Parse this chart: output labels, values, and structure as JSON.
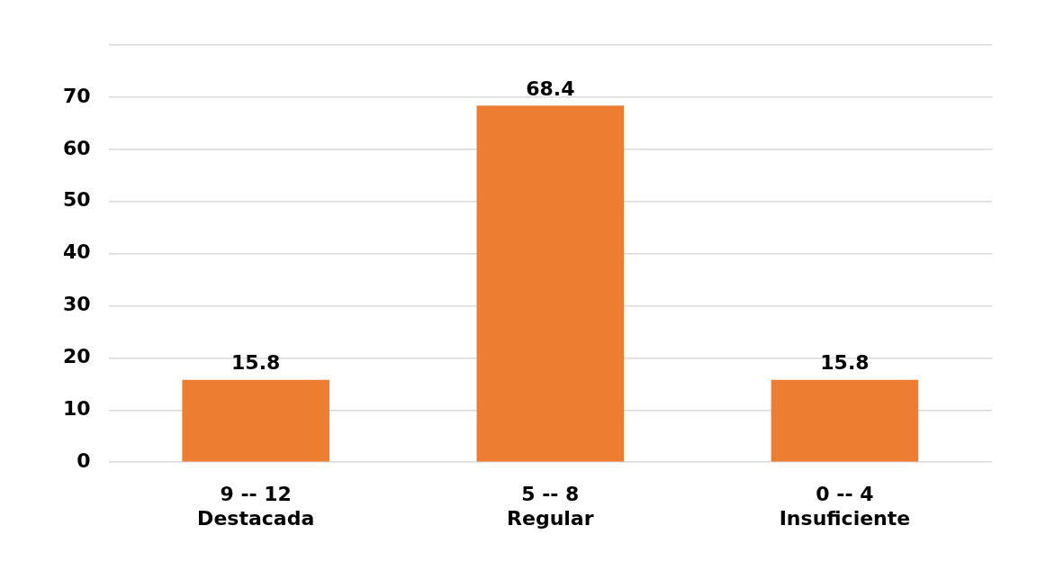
{
  "chart_data": {
    "type": "bar",
    "categories": [
      "9 -- 12\nDestacada",
      "5 -- 8\nRegular",
      "0 -- 4\nInsuficiente"
    ],
    "values": [
      15.8,
      68.4,
      15.8
    ],
    "color": "#ed7d31",
    "ylim": [
      0,
      80
    ],
    "yticks": [
      0,
      10,
      20,
      30,
      40,
      50,
      60,
      70,
      {
        "value": 80,
        "label": null
      }
    ],
    "grid": "y",
    "data_labels": true,
    "legend": false
  }
}
